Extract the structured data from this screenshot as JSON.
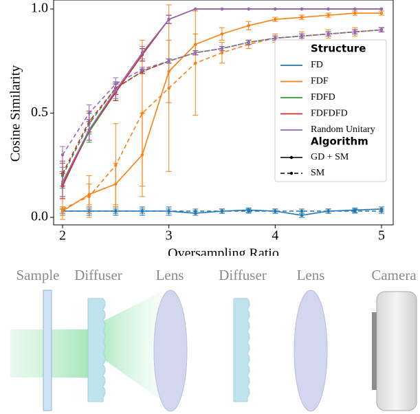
{
  "chart_data": {
    "type": "line",
    "x_label": "Oversampling Ratio",
    "y_label": "Cosine Similarity",
    "x": [
      2.0,
      2.25,
      2.5,
      2.75,
      3.0,
      3.25,
      3.5,
      3.75,
      4.0,
      4.25,
      4.5,
      4.75,
      5.0
    ],
    "xlim": [
      1.916,
      5.11
    ],
    "ylim": [
      -0.036,
      1.043
    ],
    "xticks": [
      2,
      3,
      4,
      5
    ],
    "yticks": [
      {
        "value": 0,
        "label": "0.0"
      },
      {
        "value": 0.5,
        "label": "0.5"
      },
      {
        "value": 1,
        "label": "1.0"
      }
    ],
    "legend": {
      "position": "right",
      "structure_title": "Structure",
      "structures": [
        {
          "name": "FD",
          "color": "#1f77b4"
        },
        {
          "name": "FDF",
          "color": "#ff7f0e"
        },
        {
          "name": "FDFD",
          "color": "#2ca02c"
        },
        {
          "name": "FDFDFD",
          "color": "#d62728"
        },
        {
          "name": "Random Unitary",
          "color": "#9467bd"
        }
      ],
      "algorithm_title": "Algorithm",
      "algorithms": [
        {
          "name": "GD + SM",
          "dash": "none"
        },
        {
          "name": "SM",
          "dash": "6,4"
        }
      ]
    },
    "series": [
      {
        "structure": 0,
        "algorithm": 0,
        "values": [
          0.03,
          0.03,
          0.03,
          0.03,
          0.03,
          0.02,
          0.03,
          0.035,
          0.03,
          0.01,
          0.03,
          0.035,
          0.04
        ],
        "errors": [
          0.02,
          0.02,
          0.02,
          0.02,
          0.02,
          0.01,
          0.01,
          0.01,
          0.01,
          0.01,
          0.01,
          0.01,
          0.01
        ]
      },
      {
        "structure": 0,
        "algorithm": 1,
        "values": [
          0.03,
          0.03,
          0.03,
          0.03,
          0.03,
          0.03,
          0.03,
          0.03,
          0.03,
          0.03,
          0.03,
          0.03,
          0.03
        ],
        "errors": [
          0.01,
          0.01,
          0.01,
          0.01,
          0.01,
          0.01,
          0.01,
          0.01,
          0.01,
          0.01,
          0.01,
          0.01,
          0.01
        ]
      },
      {
        "structure": 1,
        "algorithm": 0,
        "values": [
          0.03,
          0.11,
          0.16,
          0.3,
          0.7,
          0.83,
          0.88,
          0.92,
          0.95,
          0.96,
          0.97,
          0.98,
          0.98
        ],
        "errors": [
          0.02,
          0.05,
          0.1,
          0.2,
          0.15,
          0.05,
          0.03,
          0.02,
          0.01,
          0.01,
          0.01,
          0.01,
          0.01
        ]
      },
      {
        "structure": 1,
        "algorithm": 1,
        "values": [
          0.04,
          0.1,
          0.25,
          0.5,
          0.62,
          0.74,
          0.79,
          0.83,
          0.86,
          0.87,
          0.88,
          0.89,
          0.9
        ],
        "errors": [
          0.05,
          0.1,
          0.2,
          0.35,
          0.4,
          0.25,
          0.05,
          0.02,
          0.02,
          0.02,
          0.02,
          0.02,
          0.01
        ]
      },
      {
        "structure": 2,
        "algorithm": 0,
        "values": [
          0.16,
          0.41,
          0.6,
          0.78,
          0.95,
          1,
          1,
          1,
          1,
          1,
          1,
          1,
          1
        ],
        "errors": [
          0.06,
          0.05,
          0.04,
          0.03,
          0.02,
          0,
          0,
          0,
          0,
          0,
          0,
          0,
          0
        ]
      },
      {
        "structure": 2,
        "algorithm": 1,
        "values": [
          0.2,
          0.45,
          0.62,
          0.7,
          0.75,
          0.79,
          0.81,
          0.84,
          0.86,
          0.87,
          0.88,
          0.89,
          0.9
        ],
        "errors": [
          0.06,
          0.05,
          0.03,
          0.01,
          0.01,
          0.01,
          0.01,
          0.01,
          0.01,
          0.01,
          0.01,
          0.01,
          0.01
        ]
      },
      {
        "structure": 3,
        "algorithm": 0,
        "values": [
          0.15,
          0.42,
          0.6,
          0.78,
          0.95,
          1,
          1,
          1,
          1,
          1,
          1,
          1,
          1
        ],
        "errors": [
          0.06,
          0.05,
          0.04,
          0.03,
          0.02,
          0,
          0,
          0,
          0,
          0,
          0,
          0,
          0
        ]
      },
      {
        "structure": 3,
        "algorithm": 1,
        "values": [
          0.21,
          0.46,
          0.62,
          0.7,
          0.75,
          0.79,
          0.81,
          0.84,
          0.86,
          0.87,
          0.88,
          0.89,
          0.9
        ],
        "errors": [
          0.06,
          0.05,
          0.03,
          0.01,
          0.01,
          0.01,
          0.01,
          0.01,
          0.01,
          0.01,
          0.01,
          0.01,
          0.01
        ]
      },
      {
        "structure": 4,
        "algorithm": 0,
        "values": [
          0.17,
          0.42,
          0.61,
          0.79,
          0.95,
          1,
          1,
          1,
          1,
          1,
          1,
          1,
          1
        ],
        "errors": [
          0.07,
          0.05,
          0.04,
          0.03,
          0.02,
          0,
          0,
          0,
          0,
          0,
          0,
          0,
          0
        ]
      },
      {
        "structure": 4,
        "algorithm": 1,
        "values": [
          0.3,
          0.5,
          0.64,
          0.71,
          0.75,
          0.79,
          0.81,
          0.84,
          0.86,
          0.87,
          0.88,
          0.89,
          0.9
        ],
        "errors": [
          0.04,
          0.04,
          0.03,
          0.01,
          0.01,
          0.01,
          0.01,
          0.01,
          0.01,
          0.01,
          0.01,
          0.01,
          0.01
        ]
      }
    ]
  },
  "diagram": {
    "labels": [
      "Sample",
      "Diffuser",
      "Lens",
      "Diffuser",
      "Lens",
      "Camera"
    ]
  }
}
